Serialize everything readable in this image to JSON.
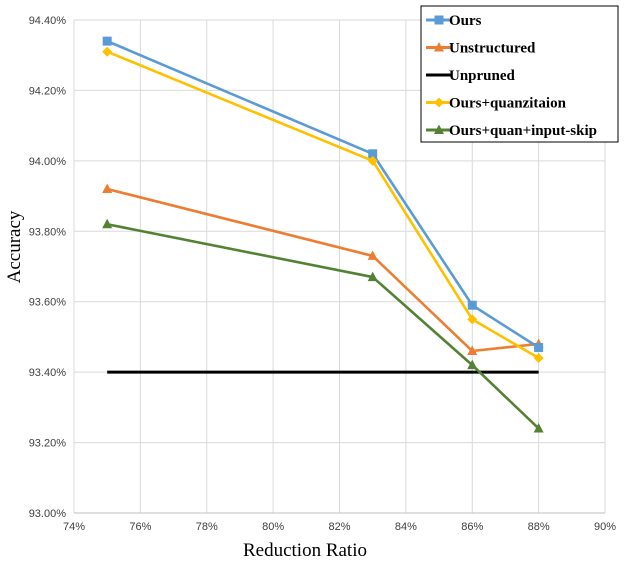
{
  "chart_data": {
    "type": "line",
    "xlabel": "Reduction Ratio",
    "ylabel": "Accuracy",
    "xlim": [
      74,
      90
    ],
    "ylim": [
      93.0,
      94.4
    ],
    "x_ticks": [
      "74%",
      "76%",
      "78%",
      "80%",
      "82%",
      "84%",
      "86%",
      "88%",
      "90%"
    ],
    "y_ticks": [
      "93.00%",
      "93.20%",
      "93.40%",
      "93.60%",
      "93.80%",
      "94.00%",
      "94.20%",
      "94.40%"
    ],
    "grid": true,
    "legend_position": "top-right",
    "series": [
      {
        "name": "Ours",
        "color": "#5b9bd5",
        "marker": "square",
        "x": [
          75,
          83,
          86,
          88
        ],
        "y": [
          94.34,
          94.02,
          93.59,
          93.47
        ]
      },
      {
        "name": "Unstructured",
        "color": "#ed7d31",
        "marker": "triangle",
        "x": [
          75,
          83,
          86,
          88
        ],
        "y": [
          93.92,
          93.73,
          93.46,
          93.48
        ]
      },
      {
        "name": "Unpruned",
        "color": "#000000",
        "marker": "none",
        "x": [
          75,
          88
        ],
        "y": [
          93.4,
          93.4
        ]
      },
      {
        "name": "Ours+quanzitaion",
        "color": "#ffc000",
        "marker": "diamond",
        "x": [
          75,
          83,
          86,
          88
        ],
        "y": [
          94.31,
          94.0,
          93.55,
          93.44
        ]
      },
      {
        "name": "Ours+quan+input-skip",
        "color": "#548235",
        "marker": "triangle",
        "x": [
          75,
          83,
          86,
          88
        ],
        "y": [
          93.82,
          93.67,
          93.42,
          93.24
        ]
      }
    ]
  }
}
